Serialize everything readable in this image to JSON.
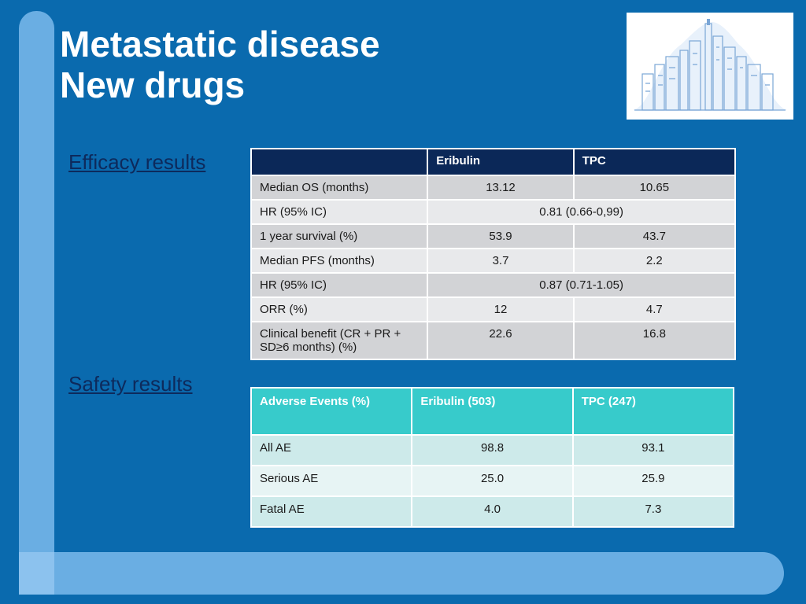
{
  "title": {
    "line1": "Metastatic disease",
    "line2": "New drugs"
  },
  "logo": {
    "name": "city-skyline-logo",
    "colors": {
      "background": "#ffffff",
      "ink": "#7aa6d6",
      "oval": "#e8f1fb"
    }
  },
  "efficacy": {
    "link_label": "Efficacy results",
    "headers": [
      "",
      "Eribulin",
      "TPC"
    ],
    "rows": [
      {
        "label": "Median OS (months)",
        "eribulin": "13.12",
        "tpc": "10.65"
      },
      {
        "label": "HR (95% IC)",
        "combined": "0.81 (0.66-0,99)"
      },
      {
        "label": "1 year survival (%)",
        "eribulin": "53.9",
        "tpc": "43.7"
      },
      {
        "label": "Median PFS (months)",
        "eribulin": "3.7",
        "tpc": "2.2"
      },
      {
        "label": "HR (95% IC)",
        "combined": "0.87 (0.71-1.05)"
      },
      {
        "label": "ORR (%)",
        "eribulin": "12",
        "tpc": "4.7"
      },
      {
        "label": "Clinical benefit (CR + PR + SD≥6 months) (%)",
        "eribulin": "22.6",
        "tpc": "16.8"
      }
    ]
  },
  "safety": {
    "link_label": "Safety results",
    "headers": [
      "Adverse Events (%)",
      "Eribulin (503)",
      "TPC (247)"
    ],
    "rows": [
      {
        "label": "All AE",
        "eribulin": "98.8",
        "tpc": "93.1"
      },
      {
        "label": "Serious AE",
        "eribulin": "25.0",
        "tpc": "25.9"
      },
      {
        "label": "Fatal AE",
        "eribulin": "4.0",
        "tpc": "7.3"
      }
    ]
  },
  "colors": {
    "background": "#0a6aae",
    "accent_bar": "#6aaee3",
    "efficacy_header": "#0b2858",
    "safety_header": "#37cbcb",
    "link": "#0d2a5c"
  }
}
